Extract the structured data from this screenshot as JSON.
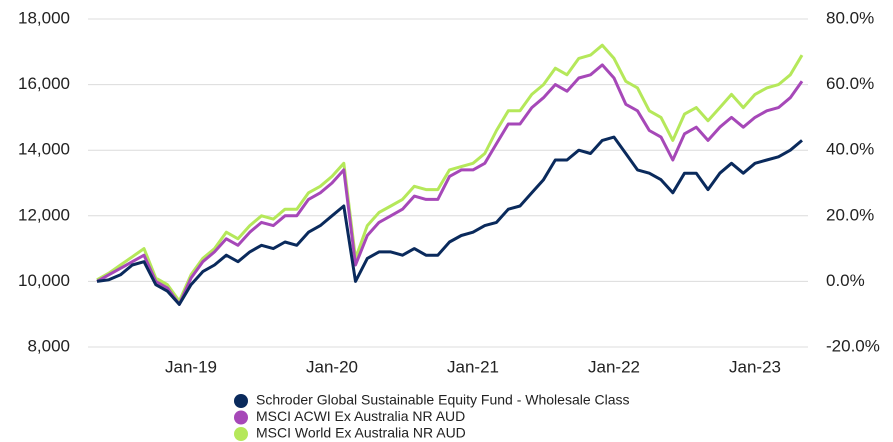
{
  "chart_data": {
    "type": "line",
    "categories": [
      null,
      null,
      null,
      null,
      null,
      null,
      null,
      null,
      "Jan-19",
      null,
      null,
      null,
      null,
      null,
      null,
      null,
      null,
      null,
      null,
      null,
      "Jan-20",
      null,
      null,
      null,
      null,
      null,
      null,
      null,
      null,
      null,
      null,
      null,
      "Jan-21",
      null,
      null,
      null,
      null,
      null,
      null,
      null,
      null,
      null,
      null,
      null,
      "Jan-22",
      null,
      null,
      null,
      null,
      null,
      null,
      null,
      null,
      null,
      null,
      null,
      "Jan-23",
      null,
      null,
      null,
      null
    ],
    "series": [
      {
        "name": "Schroder Global Sustainable Equity Fund - Wholesale Class",
        "color": "#0a2a5c",
        "values": [
          10000,
          10050,
          10200,
          10500,
          10600,
          9900,
          9700,
          9300,
          9900,
          10300,
          10500,
          10800,
          10600,
          10900,
          11100,
          11000,
          11200,
          11100,
          11500,
          11700,
          12000,
          12300,
          10000,
          10700,
          10900,
          10900,
          10800,
          11000,
          10800,
          10800,
          11200,
          11400,
          11500,
          11700,
          11800,
          12200,
          12300,
          12700,
          13100,
          13700,
          13700,
          14000,
          13900,
          14300,
          14400,
          13900,
          13400,
          13300,
          13100,
          12700,
          13300,
          13300,
          12800,
          13300,
          13600,
          13300,
          13600,
          13700,
          13800,
          14000,
          14300
        ]
      },
      {
        "name": "MSCI ACWI Ex Australia NR AUD",
        "color": "#a648b8",
        "values": [
          10000,
          10200,
          10400,
          10600,
          10800,
          10000,
          9800,
          9300,
          10100,
          10600,
          10900,
          11300,
          11100,
          11500,
          11800,
          11700,
          12000,
          12000,
          12500,
          12700,
          13000,
          13400,
          10500,
          11400,
          11800,
          12000,
          12200,
          12600,
          12500,
          12500,
          13200,
          13400,
          13400,
          13600,
          14200,
          14800,
          14800,
          15300,
          15600,
          16000,
          15800,
          16200,
          16300,
          16600,
          16200,
          15400,
          15200,
          14600,
          14400,
          13700,
          14500,
          14700,
          14300,
          14700,
          15000,
          14700,
          15000,
          15200,
          15300,
          15600,
          16100
        ]
      },
      {
        "name": "MSCI World Ex Australia NR AUD",
        "color": "#b5e85a",
        "values": [
          10050,
          10250,
          10500,
          10750,
          11000,
          10100,
          9900,
          9400,
          10200,
          10700,
          11000,
          11500,
          11300,
          11700,
          12000,
          11900,
          12200,
          12200,
          12700,
          12900,
          13200,
          13600,
          10700,
          11700,
          12100,
          12300,
          12500,
          12900,
          12800,
          12800,
          13400,
          13500,
          13600,
          13900,
          14600,
          15200,
          15200,
          15700,
          16000,
          16500,
          16300,
          16800,
          16900,
          17200,
          16800,
          16100,
          15900,
          15200,
          15000,
          14300,
          15100,
          15300,
          14900,
          15300,
          15700,
          15300,
          15700,
          15900,
          16000,
          16300,
          16900
        ]
      }
    ],
    "ylim": [
      8000,
      18000
    ],
    "yticks": [
      {
        "value": 8000,
        "label": "8,000"
      },
      {
        "value": 10000,
        "label": "10,000"
      },
      {
        "value": 12000,
        "label": "12,000"
      },
      {
        "value": 14000,
        "label": "14,000"
      },
      {
        "value": 16000,
        "label": "16,000"
      },
      {
        "value": 18000,
        "label": "18,000"
      }
    ],
    "y2lim": [
      -20,
      80
    ],
    "y2ticks": [
      {
        "value": -20,
        "label": "-20.0%"
      },
      {
        "value": 0,
        "label": "0.0%"
      },
      {
        "value": 20,
        "label": "20.0%"
      },
      {
        "value": 40,
        "label": "40.0%"
      },
      {
        "value": 60,
        "label": "60.0%"
      },
      {
        "value": 80,
        "label": "80.0%"
      }
    ],
    "grid": true
  }
}
